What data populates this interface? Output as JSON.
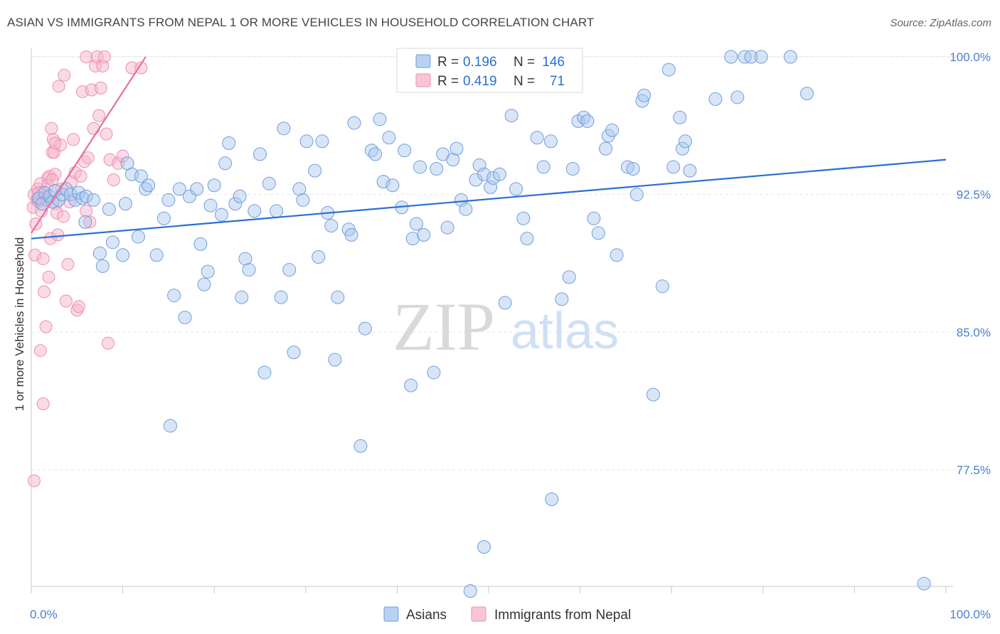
{
  "header": {
    "title": "ASIAN VS IMMIGRANTS FROM NEPAL 1 OR MORE VEHICLES IN HOUSEHOLD CORRELATION CHART",
    "source": "Source: ZipAtlas.com"
  },
  "watermark": {
    "zip": "ZIP",
    "atlas": "atlas"
  },
  "legend_box": {
    "rows": [
      {
        "r_label": "R = ",
        "r_value": "0.196",
        "n_label": "N = ",
        "n_value": "146",
        "color": "#a9c6ee"
      },
      {
        "r_label": "R = ",
        "r_value": "0.419",
        "n_label": "N = ",
        "n_value": "71",
        "color": "#f6b6cb"
      }
    ]
  },
  "bottom_legend": [
    {
      "label": "Asians",
      "color": "#a9c6ee"
    },
    {
      "label": "Immigrants from Nepal",
      "color": "#f6b6cb"
    }
  ],
  "chart_data": {
    "type": "scatter",
    "title": "ASIAN VS IMMIGRANTS FROM NEPAL 1 OR MORE VEHICLES IN HOUSEHOLD CORRELATION CHART",
    "xlabel": "",
    "ylabel": "1 or more Vehicles in Household",
    "xlim": [
      0,
      100
    ],
    "ylim": [
      71.5,
      100.8
    ],
    "x_tick_labels": [
      "0.0%",
      "100.0%"
    ],
    "y_ticks": [
      77.5,
      85.0,
      92.5,
      100.0
    ],
    "y_tick_labels": [
      "77.5%",
      "85.0%",
      "92.5%",
      "100.0%"
    ],
    "grid": true,
    "colors": {
      "asians_fill": "#a9c6ee",
      "asians_stroke": "#6f9fdc",
      "asians_line": "#2a6fd4",
      "nepal_fill": "#f6b6cb",
      "nepal_stroke": "#ee8fb0",
      "nepal_line": "#e8709a"
    },
    "series": [
      {
        "name": "Asians",
        "trend": {
          "x": [
            0,
            100
          ],
          "y": [
            90.1,
            94.4
          ]
        },
        "points": [
          [
            0.8,
            92.3
          ],
          [
            1.2,
            92.0
          ],
          [
            1.5,
            92.6
          ],
          [
            2.0,
            92.4
          ],
          [
            2.3,
            92.1
          ],
          [
            2.6,
            92.7
          ],
          [
            3.0,
            92.2
          ],
          [
            3.4,
            92.5
          ],
          [
            3.8,
            92.8
          ],
          [
            4.3,
            92.5
          ],
          [
            4.8,
            92.2
          ],
          [
            5.2,
            92.6
          ],
          [
            5.6,
            92.3
          ],
          [
            6.0,
            92.4
          ],
          [
            5.9,
            91.0
          ],
          [
            6.8,
            92.2
          ],
          [
            7.5,
            89.3
          ],
          [
            7.8,
            88.6
          ],
          [
            8.5,
            91.7
          ],
          [
            8.9,
            89.9
          ],
          [
            10.0,
            89.2
          ],
          [
            10.3,
            92.0
          ],
          [
            10.5,
            94.2
          ],
          [
            11.0,
            93.6
          ],
          [
            11.7,
            90.2
          ],
          [
            12.0,
            93.5
          ],
          [
            12.5,
            92.8
          ],
          [
            12.8,
            93.0
          ],
          [
            13.7,
            89.2
          ],
          [
            14.5,
            91.2
          ],
          [
            15.0,
            92.2
          ],
          [
            15.6,
            87.0
          ],
          [
            16.2,
            92.8
          ],
          [
            16.8,
            85.8
          ],
          [
            17.3,
            92.4
          ],
          [
            18.1,
            92.8
          ],
          [
            18.5,
            89.8
          ],
          [
            18.9,
            87.6
          ],
          [
            19.3,
            88.3
          ],
          [
            19.6,
            91.9
          ],
          [
            20.0,
            93.0
          ],
          [
            20.8,
            91.4
          ],
          [
            21.2,
            94.2
          ],
          [
            21.6,
            95.3
          ],
          [
            22.3,
            92.0
          ],
          [
            22.8,
            92.4
          ],
          [
            23.0,
            86.9
          ],
          [
            23.4,
            89.0
          ],
          [
            23.8,
            88.4
          ],
          [
            24.4,
            91.6
          ],
          [
            25.0,
            94.7
          ],
          [
            25.5,
            82.8
          ],
          [
            26.0,
            93.1
          ],
          [
            26.8,
            91.6
          ],
          [
            27.3,
            86.9
          ],
          [
            27.6,
            96.1
          ],
          [
            28.2,
            88.4
          ],
          [
            28.7,
            83.9
          ],
          [
            29.3,
            92.8
          ],
          [
            29.7,
            92.2
          ],
          [
            30.1,
            95.4
          ],
          [
            31.0,
            93.8
          ],
          [
            31.4,
            89.1
          ],
          [
            31.8,
            95.4
          ],
          [
            32.4,
            91.5
          ],
          [
            32.8,
            90.8
          ],
          [
            33.2,
            83.5
          ],
          [
            33.5,
            86.9
          ],
          [
            34.7,
            90.6
          ],
          [
            35.0,
            90.3
          ],
          [
            35.3,
            96.4
          ],
          [
            36.0,
            78.8
          ],
          [
            36.5,
            85.2
          ],
          [
            37.2,
            94.9
          ],
          [
            37.6,
            94.7
          ],
          [
            38.1,
            96.6
          ],
          [
            38.5,
            93.2
          ],
          [
            39.1,
            95.6
          ],
          [
            39.5,
            93.0
          ],
          [
            40.5,
            91.8
          ],
          [
            40.8,
            94.9
          ],
          [
            41.5,
            82.1
          ],
          [
            41.7,
            90.1
          ],
          [
            42.1,
            90.9
          ],
          [
            42.5,
            94.0
          ],
          [
            42.9,
            90.3
          ],
          [
            44.0,
            82.8
          ],
          [
            44.3,
            93.9
          ],
          [
            45.0,
            94.7
          ],
          [
            45.5,
            90.7
          ],
          [
            46.1,
            94.4
          ],
          [
            46.5,
            95.0
          ],
          [
            47.0,
            92.2
          ],
          [
            47.5,
            91.7
          ],
          [
            48.0,
            70.9
          ],
          [
            48.6,
            93.3
          ],
          [
            49.0,
            94.1
          ],
          [
            49.5,
            93.6
          ],
          [
            50.2,
            92.9
          ],
          [
            50.5,
            93.4
          ],
          [
            51.2,
            93.6
          ],
          [
            51.8,
            86.6
          ],
          [
            52.5,
            96.8
          ],
          [
            53.0,
            92.8
          ],
          [
            53.8,
            91.2
          ],
          [
            54.2,
            90.1
          ],
          [
            55.3,
            95.6
          ],
          [
            56.0,
            94.0
          ],
          [
            56.8,
            95.4
          ],
          [
            58.0,
            86.8
          ],
          [
            58.8,
            88.0
          ],
          [
            59.2,
            93.9
          ],
          [
            59.8,
            96.5
          ],
          [
            60.4,
            96.7
          ],
          [
            60.8,
            96.5
          ],
          [
            61.5,
            91.2
          ],
          [
            62.0,
            90.4
          ],
          [
            62.8,
            95.0
          ],
          [
            63.1,
            95.7
          ],
          [
            63.5,
            96.0
          ],
          [
            64.0,
            89.2
          ],
          [
            65.2,
            94.0
          ],
          [
            65.8,
            93.9
          ],
          [
            66.2,
            92.5
          ],
          [
            66.8,
            97.6
          ],
          [
            67.0,
            97.9
          ],
          [
            68.0,
            81.6
          ],
          [
            69.0,
            87.5
          ],
          [
            69.7,
            99.3
          ],
          [
            70.2,
            94.0
          ],
          [
            70.9,
            96.7
          ],
          [
            71.2,
            95.0
          ],
          [
            71.5,
            95.4
          ],
          [
            72.0,
            93.8
          ],
          [
            74.8,
            97.7
          ],
          [
            76.5,
            100.0
          ],
          [
            77.2,
            97.8
          ],
          [
            78.0,
            100.0
          ],
          [
            78.7,
            100.0
          ],
          [
            79.8,
            100.0
          ],
          [
            83.0,
            100.0
          ],
          [
            84.8,
            98.0
          ],
          [
            97.6,
            71.3
          ],
          [
            15.2,
            79.9
          ],
          [
            56.9,
            75.9
          ],
          [
            49.5,
            73.3
          ]
        ]
      },
      {
        "name": "Immigrants from Nepal",
        "trend": {
          "x": [
            0,
            12.5
          ],
          "y": [
            90.4,
            100.0
          ]
        },
        "points": [
          [
            0.2,
            91.8
          ],
          [
            0.3,
            92.5
          ],
          [
            0.4,
            89.2
          ],
          [
            0.5,
            90.9
          ],
          [
            0.6,
            92.2
          ],
          [
            0.7,
            92.8
          ],
          [
            0.8,
            92.1
          ],
          [
            0.9,
            92.3
          ],
          [
            1.0,
            93.1
          ],
          [
            1.1,
            91.6
          ],
          [
            1.2,
            92.6
          ],
          [
            1.3,
            89.0
          ],
          [
            1.4,
            87.2
          ],
          [
            1.5,
            92.4
          ],
          [
            1.6,
            85.3
          ],
          [
            1.7,
            92.2
          ],
          [
            1.8,
            93.4
          ],
          [
            1.9,
            88.0
          ],
          [
            2.0,
            93.5
          ],
          [
            2.1,
            90.1
          ],
          [
            2.2,
            96.1
          ],
          [
            2.3,
            94.8
          ],
          [
            2.4,
            95.5
          ],
          [
            2.5,
            94.8
          ],
          [
            2.6,
            93.6
          ],
          [
            2.7,
            92.0
          ],
          [
            2.8,
            91.5
          ],
          [
            2.9,
            90.3
          ],
          [
            3.0,
            98.4
          ],
          [
            3.2,
            95.2
          ],
          [
            3.3,
            92.8
          ],
          [
            3.5,
            91.3
          ],
          [
            3.6,
            99.0
          ],
          [
            3.8,
            86.7
          ],
          [
            4.0,
            88.7
          ],
          [
            4.2,
            92.1
          ],
          [
            4.4,
            93.2
          ],
          [
            4.6,
            95.5
          ],
          [
            4.8,
            93.7
          ],
          [
            5.0,
            86.2
          ],
          [
            5.2,
            86.4
          ],
          [
            5.4,
            93.5
          ],
          [
            5.6,
            98.1
          ],
          [
            5.8,
            94.3
          ],
          [
            6.0,
            91.6
          ],
          [
            6.2,
            94.5
          ],
          [
            6.4,
            91.0
          ],
          [
            6.6,
            98.2
          ],
          [
            6.8,
            96.1
          ],
          [
            7.0,
            99.5
          ],
          [
            7.2,
            100.0
          ],
          [
            7.4,
            96.8
          ],
          [
            7.6,
            98.3
          ],
          [
            7.8,
            99.5
          ],
          [
            8.0,
            100.0
          ],
          [
            8.2,
            95.8
          ],
          [
            8.4,
            84.4
          ],
          [
            8.6,
            94.4
          ],
          [
            9.0,
            93.3
          ],
          [
            9.5,
            94.2
          ],
          [
            10.0,
            94.6
          ],
          [
            11.0,
            99.4
          ],
          [
            12.0,
            99.4
          ],
          [
            0.3,
            76.9
          ],
          [
            1.0,
            84.0
          ],
          [
            1.3,
            81.1
          ],
          [
            1.8,
            93.0
          ],
          [
            2.3,
            93.3
          ],
          [
            2.6,
            95.3
          ],
          [
            0.8,
            92.6
          ],
          [
            6.0,
            100.0
          ]
        ]
      }
    ]
  }
}
